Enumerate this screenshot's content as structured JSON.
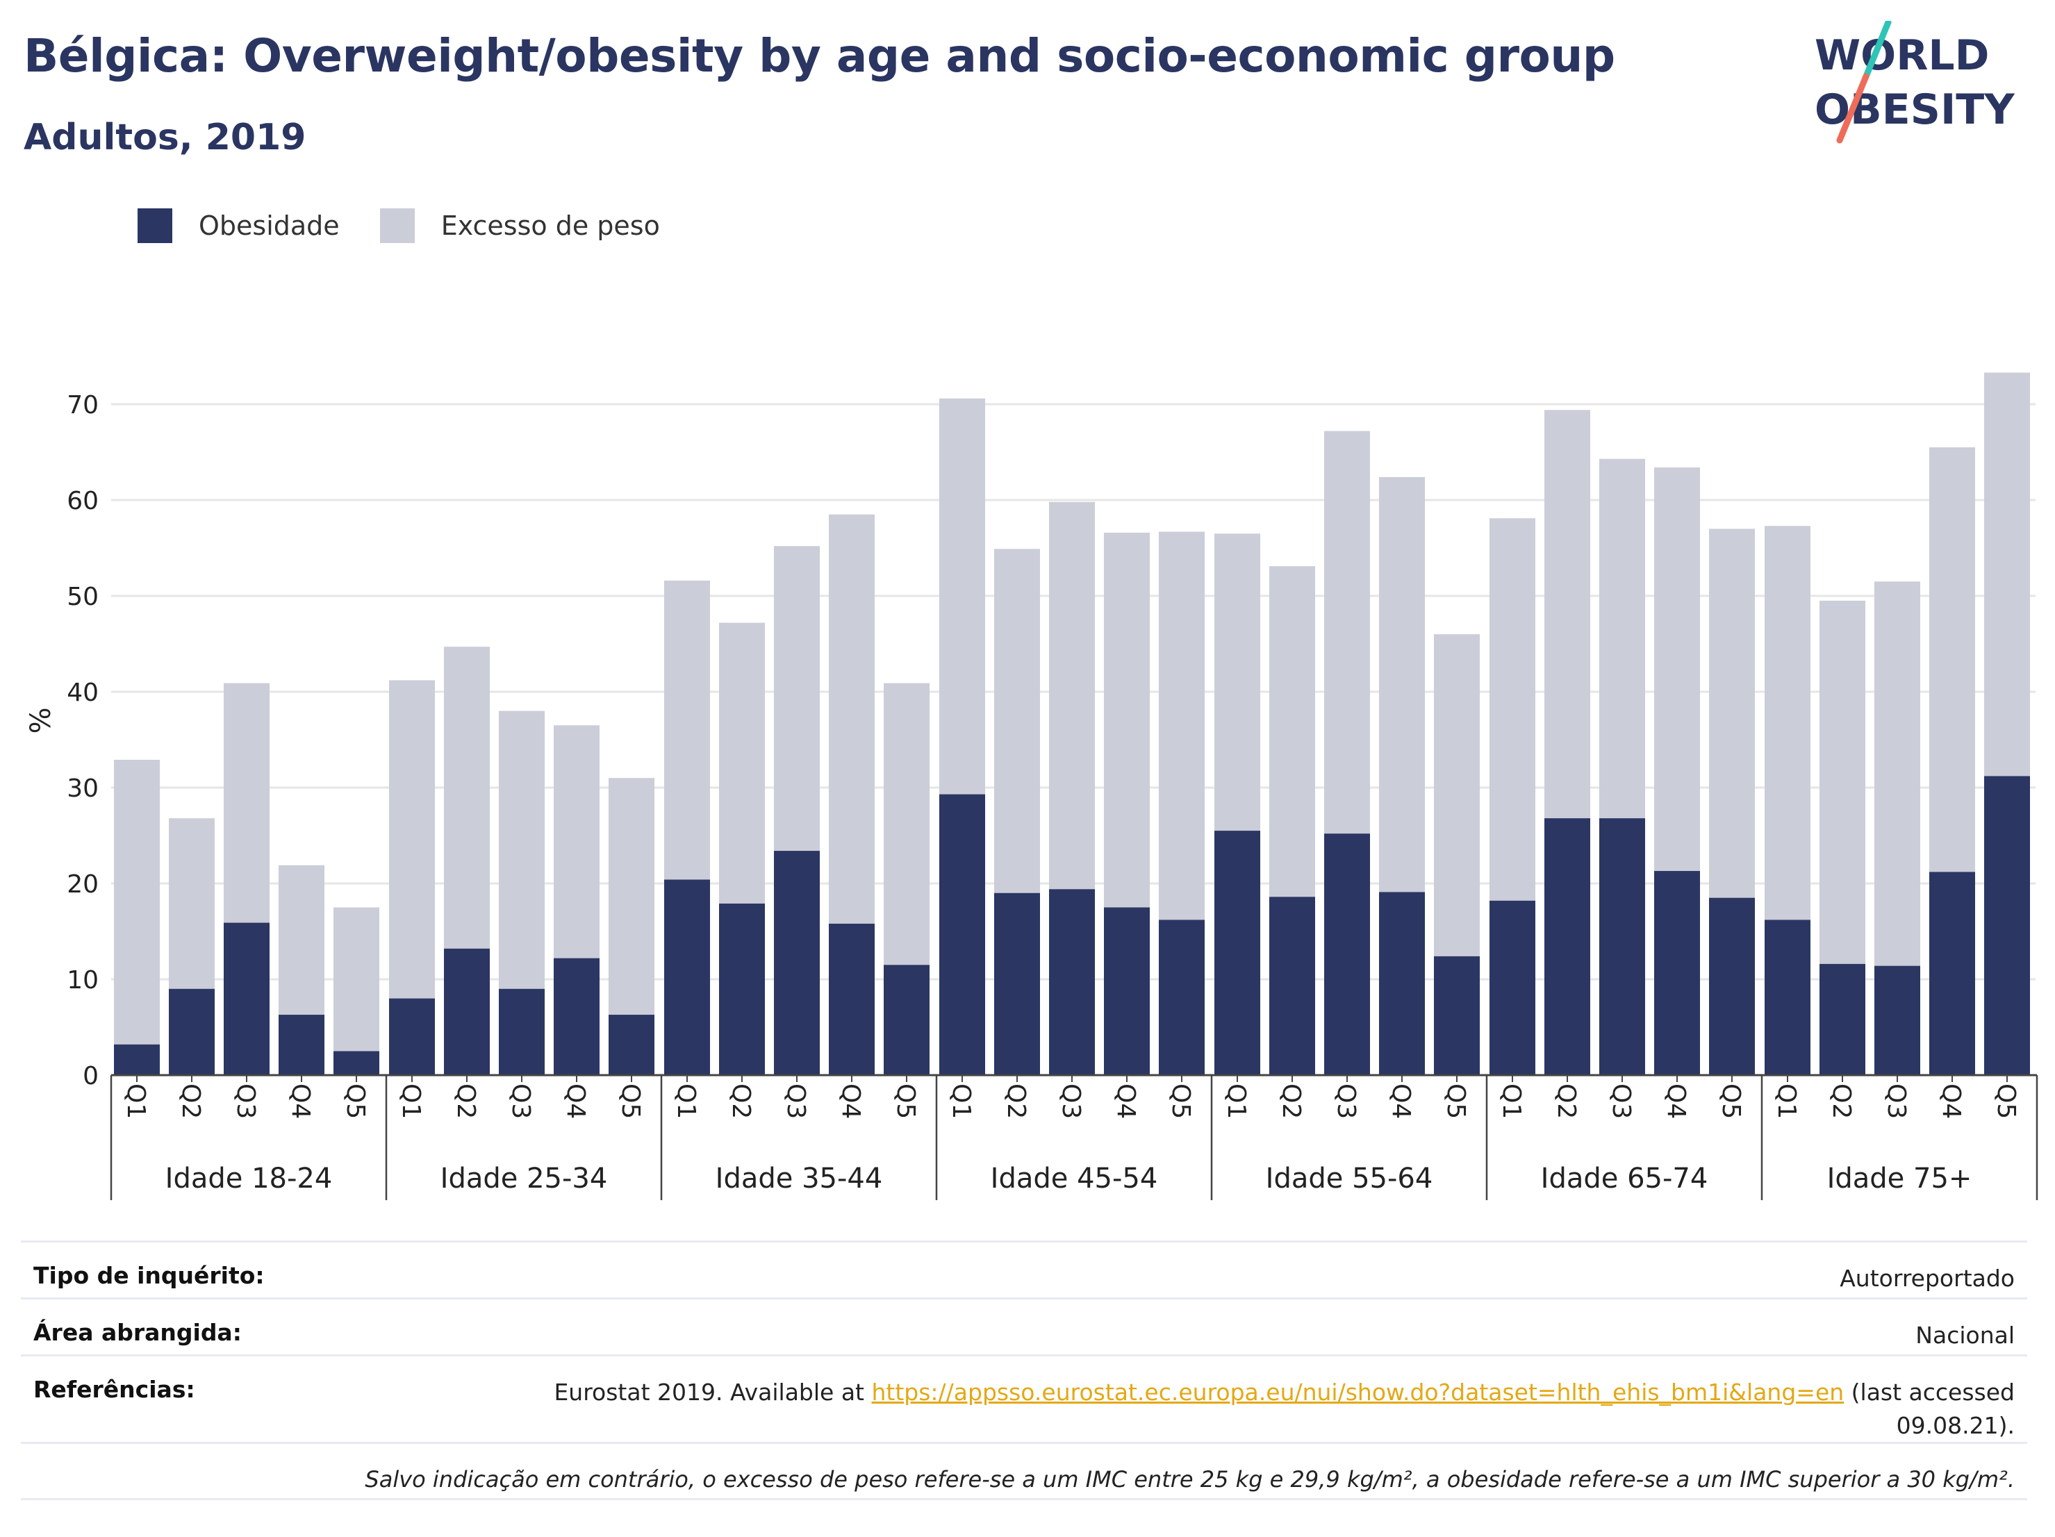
{
  "header": {
    "title": "Bélgica: Overweight/obesity by age and socio-economic group",
    "subtitle": "Adultos, 2019"
  },
  "logo": {
    "line1": "WORLD",
    "line2": "OBESITY",
    "icon": "world-obesity-logo"
  },
  "colors": {
    "obesity": "#2b3663",
    "overweight": "#cbcdd8",
    "title": "#2a3561",
    "grid": "#e6e6e6",
    "link": "#e3a815",
    "logo_teal": "#2ec4b6",
    "logo_coral": "#ef6b5a"
  },
  "chart_data": {
    "type": "bar",
    "stacked": false,
    "ylabel": "%",
    "ylim": [
      0,
      75
    ],
    "yticks": [
      0,
      10,
      20,
      30,
      40,
      50,
      60,
      70
    ],
    "grid": true,
    "legend_position": "top-left",
    "groups": [
      "Idade 18-24",
      "Idade 25-34",
      "Idade 35-44",
      "Idade 45-54",
      "Idade 55-64",
      "Idade 65-74",
      "Idade 75+"
    ],
    "categories": [
      "Q1",
      "Q2",
      "Q3",
      "Q4",
      "Q5"
    ],
    "series": [
      {
        "name": "Excesso de peso",
        "values": [
          [
            32.9,
            26.8,
            40.9,
            21.9,
            17.5
          ],
          [
            41.2,
            44.7,
            38.0,
            36.5,
            31.0
          ],
          [
            51.6,
            47.2,
            55.2,
            58.5,
            40.9
          ],
          [
            70.6,
            54.9,
            59.8,
            56.6,
            56.7
          ],
          [
            56.5,
            53.1,
            67.2,
            62.4,
            46.0
          ],
          [
            58.1,
            69.4,
            64.3,
            63.4,
            57.0
          ],
          [
            57.3,
            49.5,
            51.5,
            65.5,
            73.3
          ]
        ]
      },
      {
        "name": "Obesidade",
        "values": [
          [
            3.2,
            9.0,
            15.9,
            6.3,
            2.5
          ],
          [
            8.0,
            13.2,
            9.0,
            12.2,
            6.3
          ],
          [
            20.4,
            17.9,
            23.4,
            15.8,
            11.5
          ],
          [
            29.3,
            19.0,
            19.4,
            17.5,
            16.2
          ],
          [
            25.5,
            18.6,
            25.2,
            19.1,
            12.4
          ],
          [
            18.2,
            26.8,
            26.8,
            21.3,
            18.5
          ],
          [
            16.2,
            11.6,
            11.4,
            21.2,
            31.2
          ]
        ]
      }
    ]
  },
  "legend": [
    {
      "label": "Obesidade",
      "color": "#2b3663"
    },
    {
      "label": "Excesso de peso",
      "color": "#cbcdd8"
    }
  ],
  "info": {
    "survey_label": "Tipo de inquérito:",
    "survey_value": "Autorreportado",
    "area_label": "Área abrangida:",
    "area_value": "Nacional",
    "ref_label": "Referências:",
    "ref_prefix": "Eurostat 2019. Available at ",
    "ref_link": "https://appsso.eurostat.ec.europa.eu/nui/show.do?dataset=hlth_ehis_bm1i&lang=en",
    "ref_suffix_1": " (last accessed",
    "ref_suffix_2": "09.08.21).",
    "note": "Salvo indicação em contrário, o excesso de peso refere-se a um IMC entre 25 kg e 29,9 kg/m², a obesidade refere-se a um IMC superior a 30 kg/m²."
  }
}
